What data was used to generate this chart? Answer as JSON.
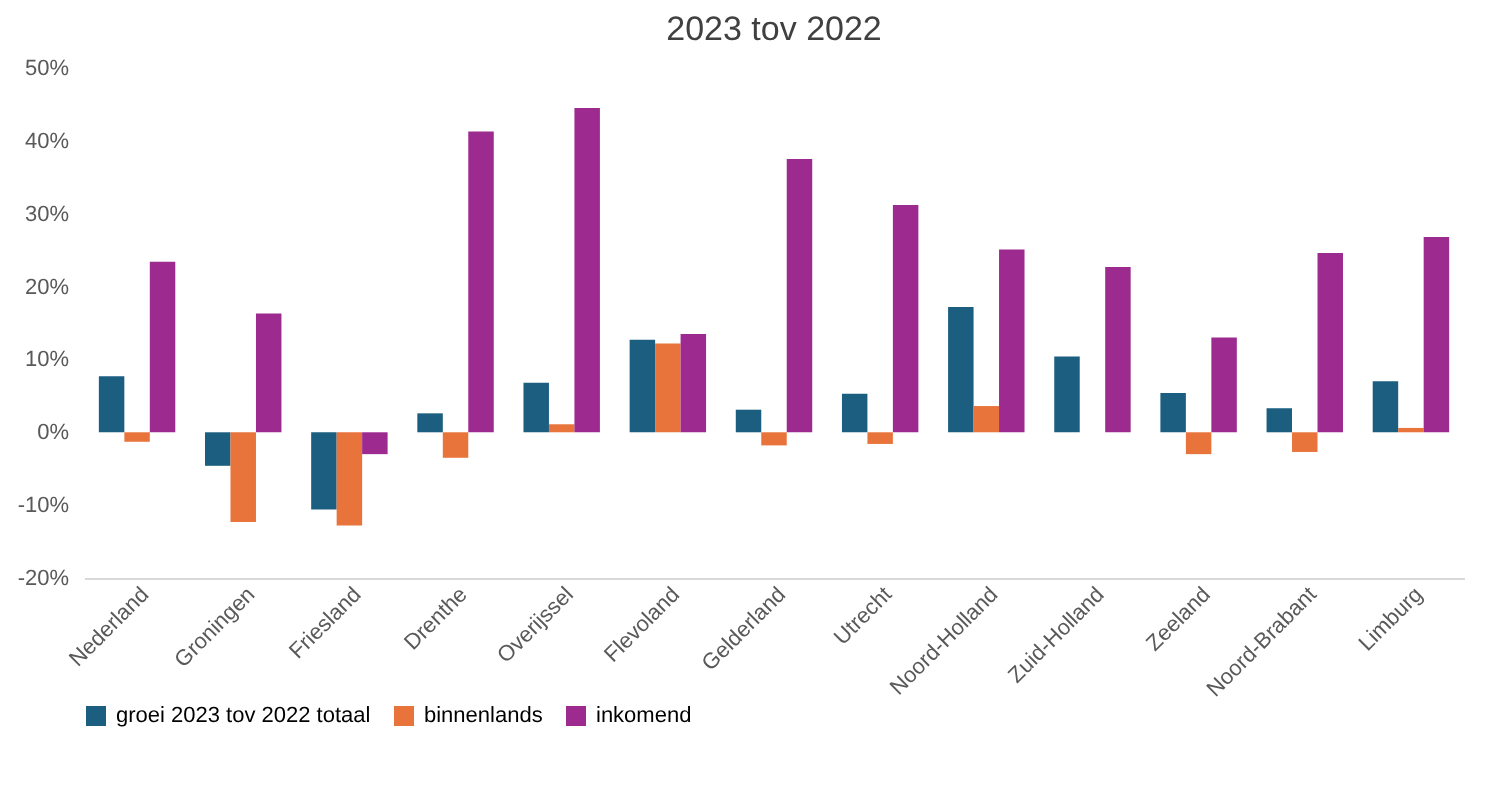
{
  "chart_data": {
    "type": "bar",
    "title": "2023 tov 2022",
    "categories": [
      "Nederland",
      "Groningen",
      "Friesland",
      "Drenthe",
      "Overijssel",
      "Flevoland",
      "Gelderland",
      "Utrecht",
      "Noord-Holland",
      "Zuid-Holland",
      "Zeeland",
      "Noord-Brabant",
      "Limburg"
    ],
    "series": [
      {
        "name": "groei 2023 tov 2022 totaal",
        "color": "#1b5e7f",
        "values": [
          7.7,
          -4.6,
          -10.6,
          2.6,
          6.8,
          12.7,
          3.1,
          5.3,
          17.2,
          10.4,
          5.4,
          3.3,
          7.0
        ]
      },
      {
        "name": "binnenlands",
        "color": "#e8743b",
        "values": [
          -1.3,
          -12.3,
          -12.8,
          -3.5,
          1.1,
          12.2,
          -1.8,
          -1.6,
          3.6,
          0,
          -3.0,
          -2.7,
          0.6
        ]
      },
      {
        "name": "inkomend",
        "color": "#9c2a8f",
        "values": [
          23.4,
          16.3,
          -3.0,
          41.3,
          44.5,
          13.5,
          37.5,
          31.2,
          25.1,
          22.7,
          13.0,
          24.6,
          26.8
        ]
      }
    ],
    "ylim": [
      -20,
      50
    ],
    "yticks": [
      {
        "value": -20,
        "label": "-20%"
      },
      {
        "value": -10,
        "label": "-10%"
      },
      {
        "value": 0,
        "label": "0%"
      },
      {
        "value": 10,
        "label": "10%"
      },
      {
        "value": 20,
        "label": "20%"
      },
      {
        "value": 30,
        "label": "30%"
      },
      {
        "value": 40,
        "label": "40%"
      },
      {
        "value": 50,
        "label": "50%"
      }
    ],
    "grid": false,
    "legend": "bottom"
  }
}
